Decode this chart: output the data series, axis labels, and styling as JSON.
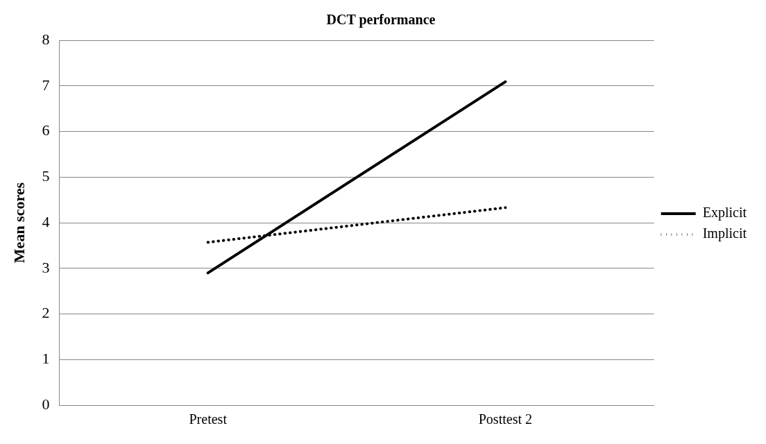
{
  "chart_data": {
    "type": "line",
    "title": "DCT performance",
    "ylabel": "Mean scores",
    "categories": [
      "Pretest",
      "Posttest 2"
    ],
    "series": [
      {
        "name": "Explicit",
        "color": "#000000",
        "values": [
          2.9,
          7.09
        ],
        "line_style": "solid"
      },
      {
        "name": "Implicit",
        "color": "#000000",
        "values": [
          3.57,
          4.33
        ],
        "line_style": "dotted"
      }
    ],
    "ylim": [
      0,
      8
    ],
    "yticks": [
      0,
      1,
      2,
      3,
      4,
      5,
      6,
      7,
      8
    ],
    "grid": "y",
    "legend": "right",
    "marker": "none"
  }
}
